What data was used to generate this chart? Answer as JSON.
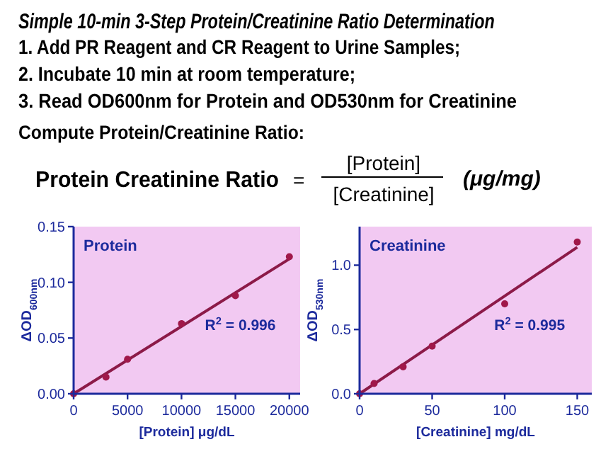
{
  "chart_data": [
    {
      "type": "other",
      "title": "Simple 10-min 3-Step Protein/Creatinine Ratio Determination",
      "annotations": [
        "1.   Add PR Reagent and CR Reagent to Urine Samples;",
        "2.   Incubate 10 min at room temperature;",
        "3.   Read OD600nm for Protein and OD530nm for Creatinine",
        "Compute Protein/Creatinine Ratio:",
        "Protein Creatinine Ratio",
        "=",
        "[Protein]",
        "[Creatinine]",
        "(μg/mg)"
      ]
    },
    {
      "type": "scatter",
      "title": "Protein",
      "xlabel": "[Protein] μg/dL",
      "ylabel": "ΔOD$_{600nm}$",
      "annotations": [
        "R$^{2}$ = 0.996"
      ],
      "xlim": [
        0,
        21000
      ],
      "ylim": [
        0,
        0.15
      ],
      "xticks": [
        0,
        5000,
        10000,
        15000,
        20000
      ],
      "yticks": [
        {
          "value": 0,
          "label": "0.00"
        },
        {
          "value": 0.05,
          "label": "0.05"
        },
        {
          "value": 0.1,
          "label": "0.10"
        },
        {
          "value": 0.15,
          "label": "0.15"
        }
      ],
      "grid": false,
      "marker": "circle",
      "series": [
        {
          "color": "#a0184a",
          "x": [
            0,
            3000,
            5000,
            10000,
            15000,
            20000
          ],
          "values": [
            0,
            0.015,
            0.031,
            0.063,
            0.088,
            0.123
          ]
        },
        {
          "type": "line",
          "color": "#8c1a48",
          "line_style": "solid",
          "marker": "none",
          "x": [
            0,
            20000
          ],
          "values": [
            0,
            0.121
          ]
        }
      ]
    },
    {
      "type": "scatter",
      "title": "Creatinine",
      "xlabel": "[Creatinine] mg/dL",
      "ylabel": "ΔOD$_{530nm}$",
      "annotations": [
        "R$^{2}$ = 0.995"
      ],
      "xlim": [
        0,
        160
      ],
      "ylim": [
        0,
        1.3
      ],
      "xticks": [
        0,
        50,
        100,
        150
      ],
      "yticks": [
        {
          "value": 0,
          "label": "0.0"
        },
        {
          "value": 0.5,
          "label": "0.5"
        },
        {
          "value": 1,
          "label": "1.0"
        }
      ],
      "grid": false,
      "marker": "circle",
      "series": [
        {
          "color": "#a0184a",
          "x": [
            0,
            10,
            30,
            50,
            100,
            150
          ],
          "values": [
            0,
            0.08,
            0.21,
            0.37,
            0.7,
            1.18
          ]
        },
        {
          "type": "line",
          "color": "#8c1a48",
          "line_style": "solid",
          "marker": "none",
          "x": [
            0,
            150
          ],
          "values": [
            0,
            1.14
          ]
        }
      ]
    }
  ]
}
